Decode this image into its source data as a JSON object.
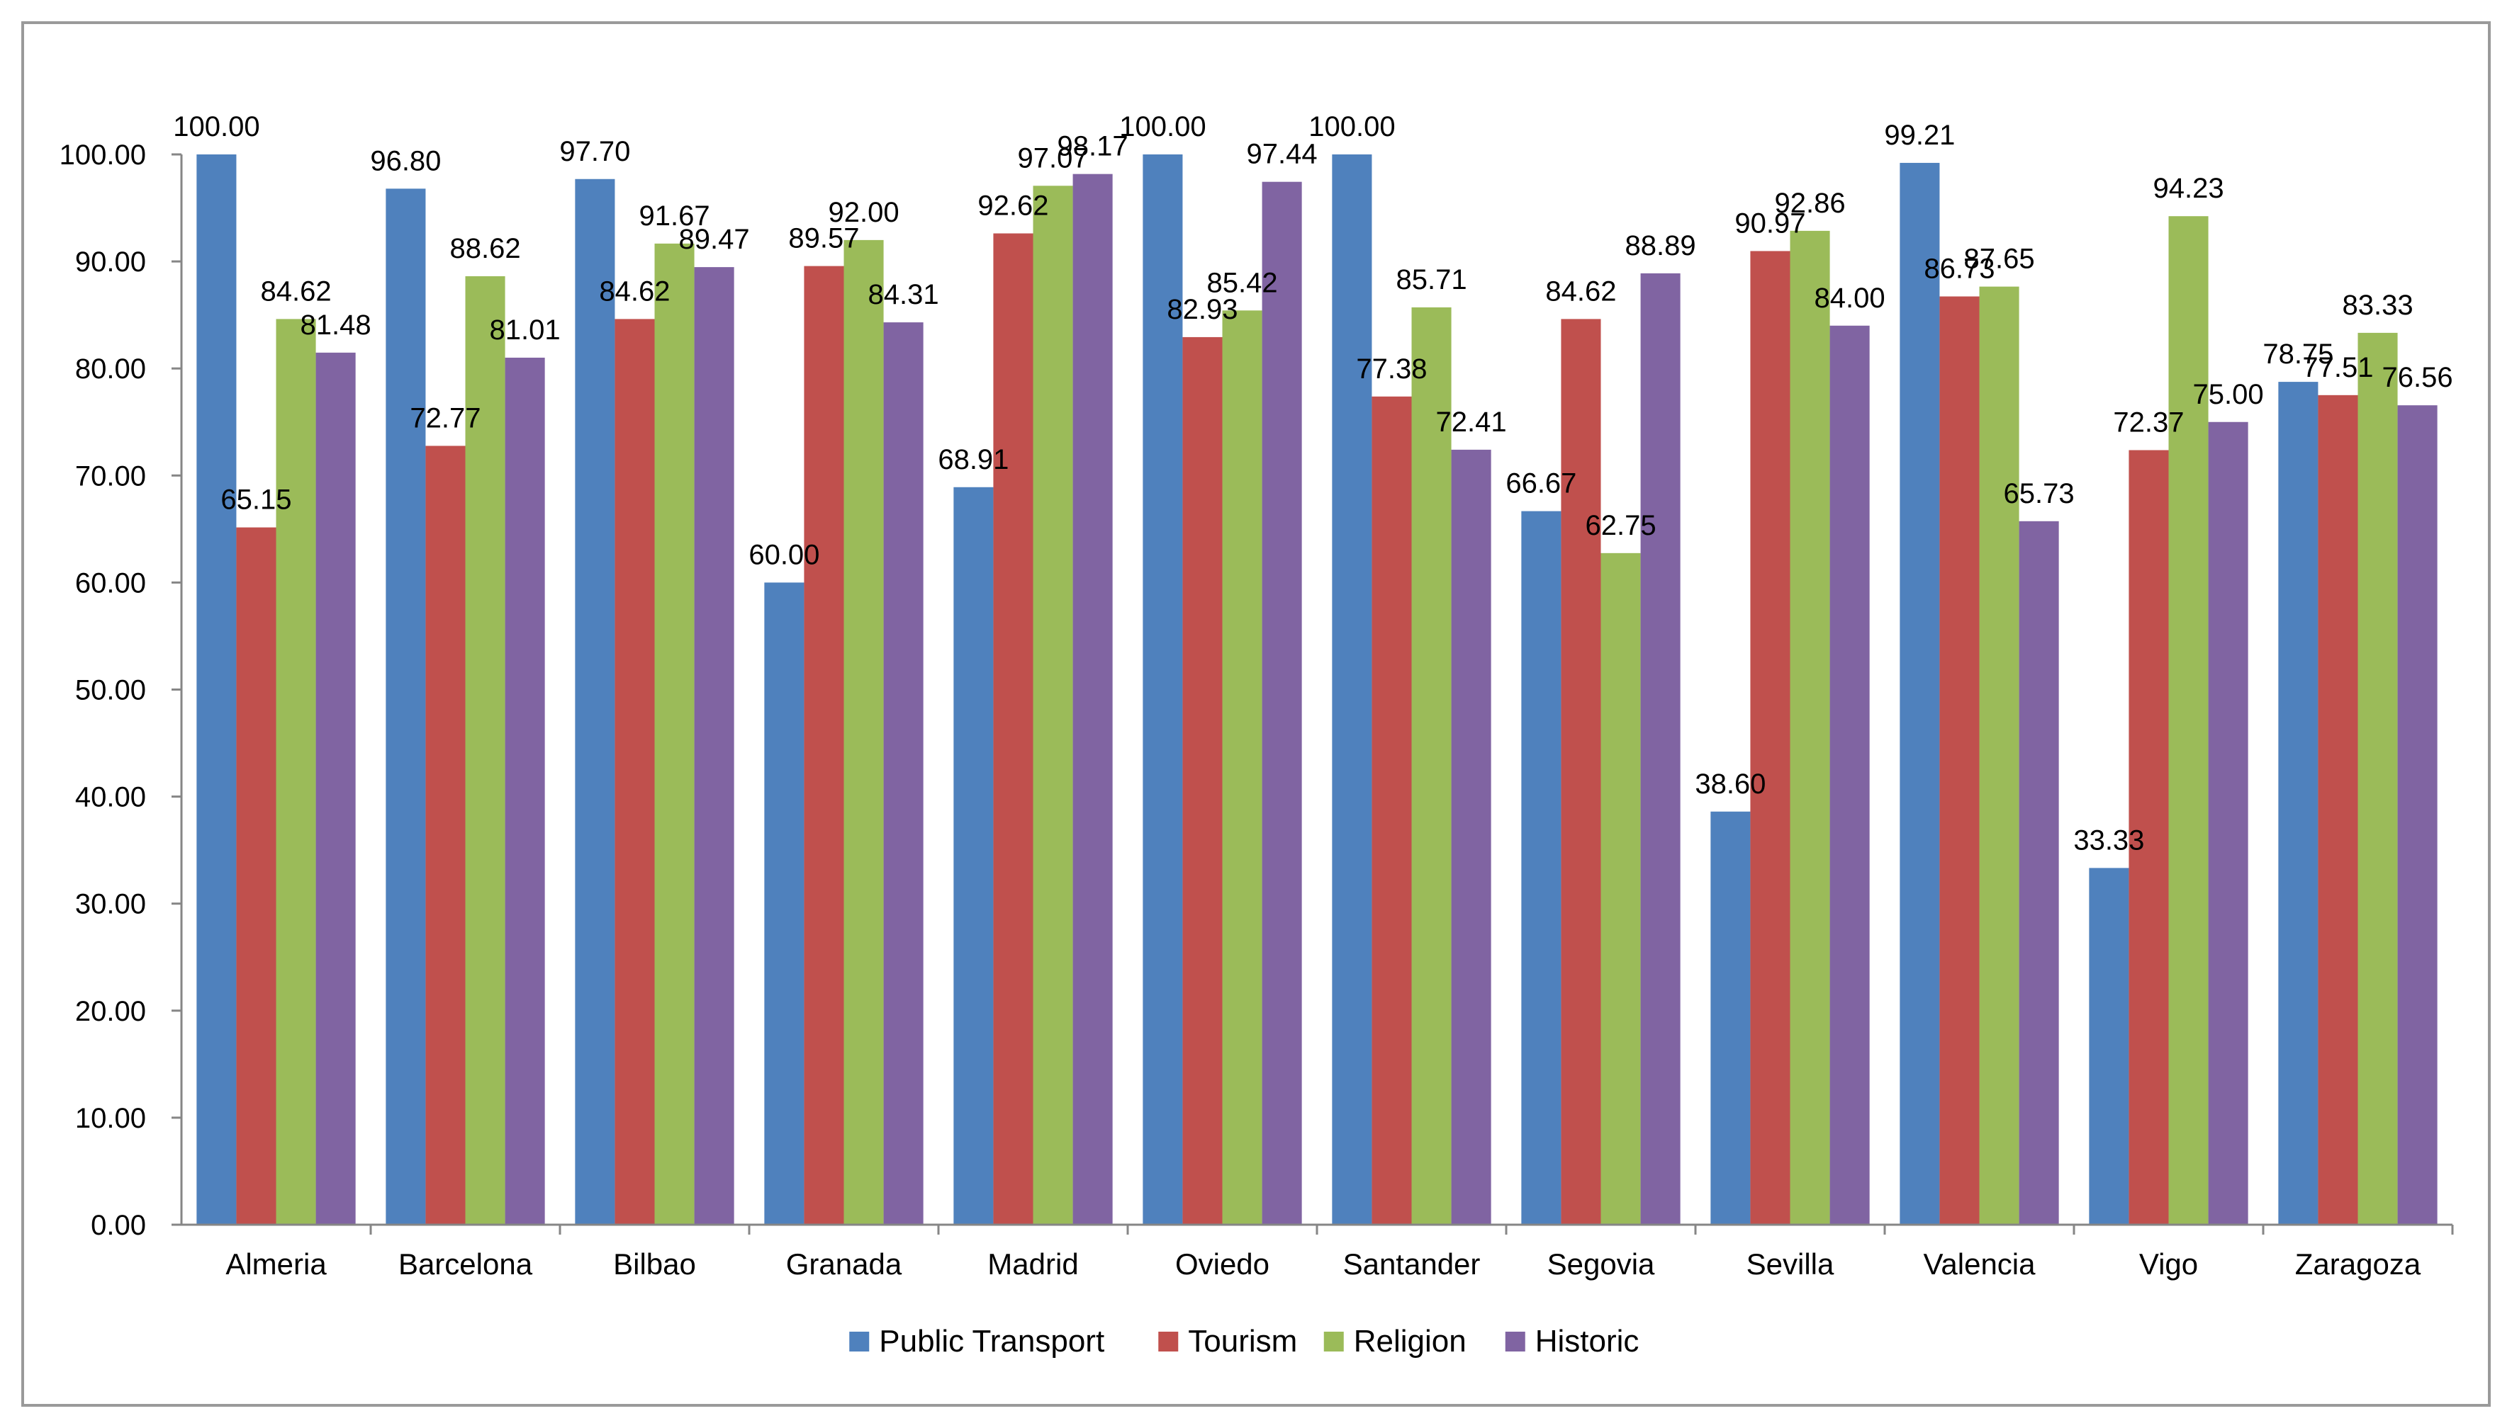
{
  "chart_data": {
    "type": "bar",
    "title": "",
    "xlabel": "",
    "ylabel": "",
    "ylim": [
      0,
      100
    ],
    "yticks": [
      "0.00",
      "10.00",
      "20.00",
      "30.00",
      "40.00",
      "50.00",
      "60.00",
      "70.00",
      "80.00",
      "90.00",
      "100.00"
    ],
    "legend_position": "bottom",
    "categories": [
      "Almeria",
      "Barcelona",
      "Bilbao",
      "Granada",
      "Madrid",
      "Oviedo",
      "Santander",
      "Segovia",
      "Sevilla",
      "Valencia",
      "Vigo",
      "Zaragoza"
    ],
    "series": [
      {
        "name": "Public Transport",
        "color": "#4f81bd",
        "values": [
          100.0,
          96.8,
          97.7,
          60.0,
          68.91,
          100.0,
          100.0,
          66.67,
          38.6,
          99.21,
          33.33,
          78.75
        ],
        "labels": [
          "100.00",
          "96.80",
          "97.70",
          "60.00",
          "68.91",
          "100.00",
          "100.00",
          "66.67",
          "38.60",
          "99.21",
          "33.33",
          "78.75"
        ]
      },
      {
        "name": "Tourism",
        "color": "#c0504d",
        "values": [
          65.15,
          72.77,
          84.62,
          89.57,
          92.62,
          82.93,
          77.38,
          84.62,
          90.97,
          86.73,
          72.37,
          77.51
        ],
        "labels": [
          "65.15",
          "72.77",
          "84.62",
          "89.57",
          "92.62",
          "82.93",
          "77.38",
          "84.62",
          "90.97",
          "86.73",
          "72.37",
          "77.51"
        ]
      },
      {
        "name": "Religion",
        "color": "#9bbb59",
        "values": [
          84.62,
          88.62,
          91.67,
          92.0,
          97.07,
          85.42,
          85.71,
          62.75,
          92.86,
          87.65,
          94.23,
          83.33
        ],
        "labels": [
          "84.62",
          "88.62",
          "91.67",
          "92.00",
          "97.07",
          "85.42",
          "85.71",
          "62.75",
          "92.86",
          "87.65",
          "94.23",
          "83.33"
        ]
      },
      {
        "name": "Historic",
        "color": "#8064a2",
        "values": [
          81.48,
          81.01,
          89.47,
          84.31,
          98.17,
          97.44,
          72.41,
          88.89,
          84.0,
          65.73,
          75.0,
          76.56
        ],
        "labels": [
          "81.48",
          "81.01",
          "89.47",
          "84.31",
          "98.17",
          "97.44",
          "72.41",
          "88.89",
          "84.00",
          "65.73",
          "75.00",
          "76.56"
        ]
      }
    ]
  }
}
